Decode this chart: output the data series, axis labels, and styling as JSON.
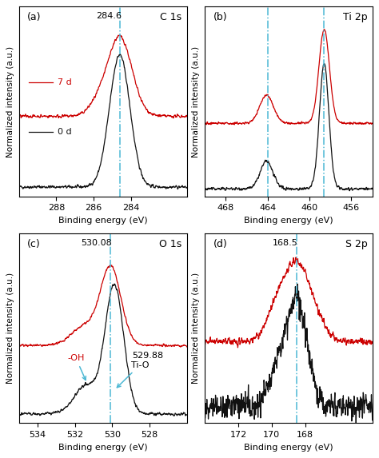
{
  "panels": [
    {
      "label": "(a)",
      "title": "C 1s",
      "xlabel": "Binding energy (eV)",
      "ylabel": "Normalized intensity (a.u.)",
      "xmin": 290,
      "xmax": 281,
      "xticks": [
        288,
        286,
        284
      ],
      "vline": 284.6,
      "vline_label": "284.6",
      "vline_label_side": "left",
      "legend_7d": "7 d",
      "legend_0d": "0 d",
      "show_legend": true
    },
    {
      "label": "(b)",
      "title": "Ti 2p",
      "xlabel": "Binding energy (eV)",
      "ylabel": "Normalized intensity (a.u.)",
      "xmin": 470,
      "xmax": 454,
      "xticks": [
        468,
        464,
        460,
        456
      ],
      "vline1": 464.0,
      "vline2": 458.6,
      "show_legend": false
    },
    {
      "label": "(c)",
      "title": "O 1s",
      "xlabel": "Binding energy (eV)",
      "ylabel": "Normalized intensity (a.u.)",
      "xmin": 535,
      "xmax": 526,
      "xticks": [
        534,
        532,
        530,
        528
      ],
      "vline": 530.08,
      "vline_label": "530.08",
      "vline_label_side": "left",
      "label2": "529.88",
      "annot_OH": "-OH",
      "annot_TiO": "Ti-O",
      "show_legend": false
    },
    {
      "label": "(d)",
      "title": "S 2p",
      "xlabel": "Binding energy (eV)",
      "ylabel": "Normalized intensity (a.u.)",
      "xmin": 174,
      "xmax": 164,
      "xticks": [
        172,
        170,
        168
      ],
      "vline": 168.5,
      "vline_label": "168.5",
      "show_legend": false
    }
  ],
  "color_7d": "#cc0000",
  "color_0d": "#111111",
  "color_vline": "#4db8d4",
  "background": "#ffffff",
  "lw": 0.9
}
